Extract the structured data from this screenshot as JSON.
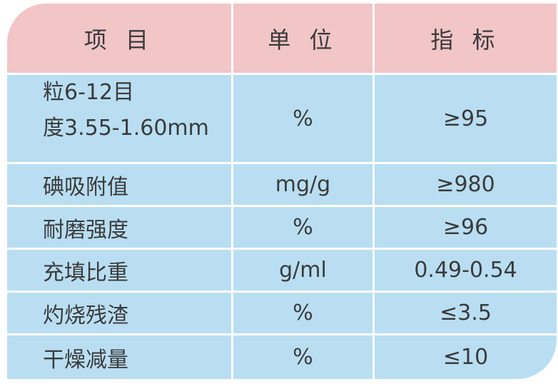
{
  "header": [
    "项 目",
    "单 位",
    "指 标"
  ],
  "rows": [
    {
      "item_lines": [
        "粒6-12目",
        "度3.55-1.60mm"
      ],
      "unit": "%",
      "value": "≥95"
    },
    {
      "item": "碘吸附值",
      "unit": "mg/g",
      "value": "≥980"
    },
    {
      "item": "耐磨强度",
      "unit": "%",
      "value": "≥96"
    },
    {
      "item": "充填比重",
      "unit": "g/ml",
      "value": "0.49-0.54"
    },
    {
      "item": "灼烧残渣",
      "unit": "%",
      "value": "≤3.5"
    },
    {
      "item": "干燥减量",
      "unit": "%",
      "value": "≤10"
    }
  ],
  "colors": {
    "header_bg": "#f2c5c7",
    "body_bg": "#b9def2",
    "text": "#3b3b3b"
  }
}
